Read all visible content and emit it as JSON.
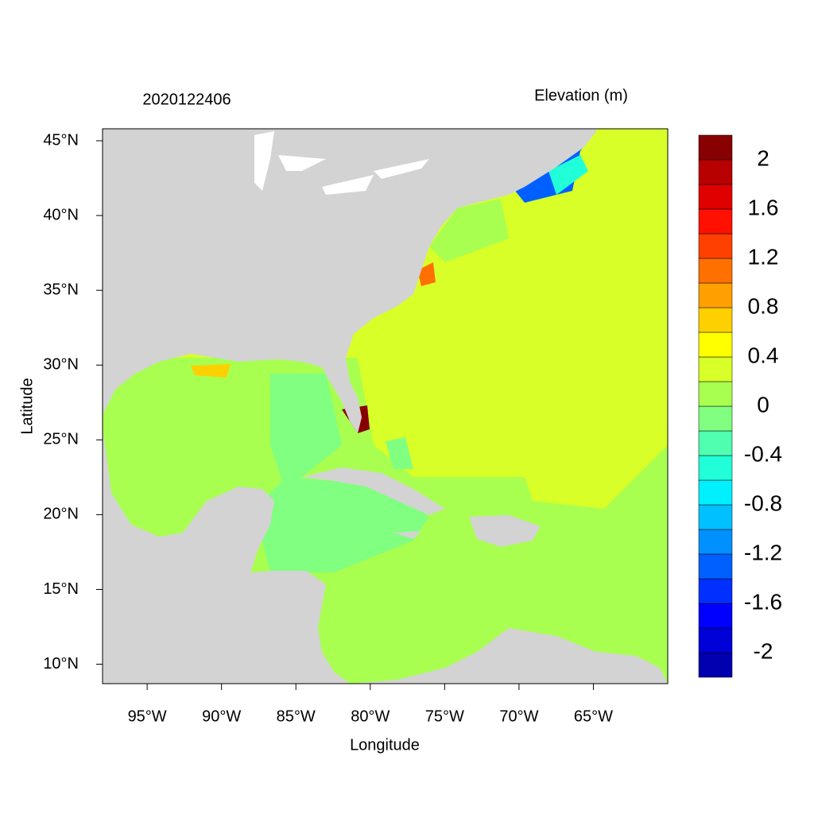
{
  "map": {
    "title": "2020122406",
    "legend_title": "Elevation (m)",
    "x_label": "Longitude",
    "y_label": "Latitude",
    "xlim": [
      -98,
      -60
    ],
    "ylim": [
      8.7,
      45.8
    ],
    "xticks": [
      {
        "value": -95,
        "label": "95°W"
      },
      {
        "value": -90,
        "label": "90°W"
      },
      {
        "value": -85,
        "label": "85°W"
      },
      {
        "value": -80,
        "label": "80°W"
      },
      {
        "value": -75,
        "label": "75°W"
      },
      {
        "value": -70,
        "label": "70°W"
      },
      {
        "value": -65,
        "label": "65°W"
      }
    ],
    "yticks": [
      {
        "value": 10,
        "label": "10°N"
      },
      {
        "value": 15,
        "label": "15°N"
      },
      {
        "value": 20,
        "label": "20°N"
      },
      {
        "value": 25,
        "label": "25°N"
      },
      {
        "value": 30,
        "label": "30°N"
      },
      {
        "value": 35,
        "label": "35°N"
      },
      {
        "value": 40,
        "label": "40°N"
      },
      {
        "value": 45,
        "label": "45°N"
      }
    ],
    "colorbar": {
      "lim": [
        -2.2,
        2.2
      ],
      "ticks": [
        2,
        1.6,
        1.2,
        0.8,
        0.4,
        0,
        -0.4,
        -0.8,
        -1.2,
        -1.6,
        -2
      ],
      "colors": [
        "#0000b0",
        "#0000d8",
        "#0000ff",
        "#0030ff",
        "#0060ff",
        "#0090ff",
        "#00c0ff",
        "#00f0ff",
        "#20ffd8",
        "#50ffb0",
        "#80ff80",
        "#a8ff50",
        "#d8ff28",
        "#ffff00",
        "#ffd000",
        "#ffa000",
        "#ff7000",
        "#ff4000",
        "#ff1000",
        "#e00000",
        "#b80000",
        "#880000"
      ]
    }
  }
}
